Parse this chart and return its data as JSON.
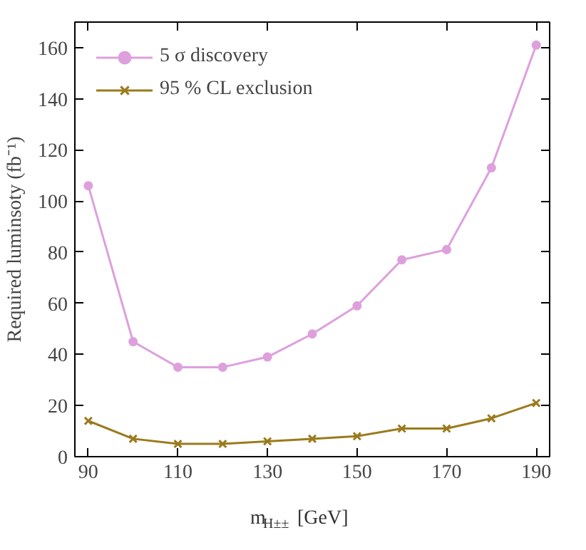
{
  "chart_data": {
    "type": "line",
    "xlabel": "m$_{H±±}$ [GeV]",
    "ylabel": "Required luminsoty (fb⁻¹)",
    "x": [
      90,
      100,
      110,
      120,
      130,
      140,
      150,
      160,
      170,
      180,
      190
    ],
    "series": [
      {
        "name": "5 σ discovery",
        "color": "#dda0dd",
        "marker": "circle",
        "values": [
          106,
          45,
          35,
          35,
          39,
          48,
          59,
          77,
          81,
          113,
          161
        ]
      },
      {
        "name": "95 % CL exclusion",
        "color": "#9a7b1c",
        "marker": "cross",
        "values": [
          14,
          7,
          5,
          5,
          6,
          7,
          8,
          11,
          11,
          15,
          21
        ]
      }
    ],
    "xlim": [
      87,
      193
    ],
    "ylim": [
      0,
      170
    ],
    "xticks": [
      90,
      110,
      130,
      150,
      170,
      190
    ],
    "yticks": [
      0,
      20,
      40,
      60,
      80,
      100,
      120,
      140,
      160
    ],
    "grid": false,
    "legend": "top left",
    "line_style": "solid"
  }
}
